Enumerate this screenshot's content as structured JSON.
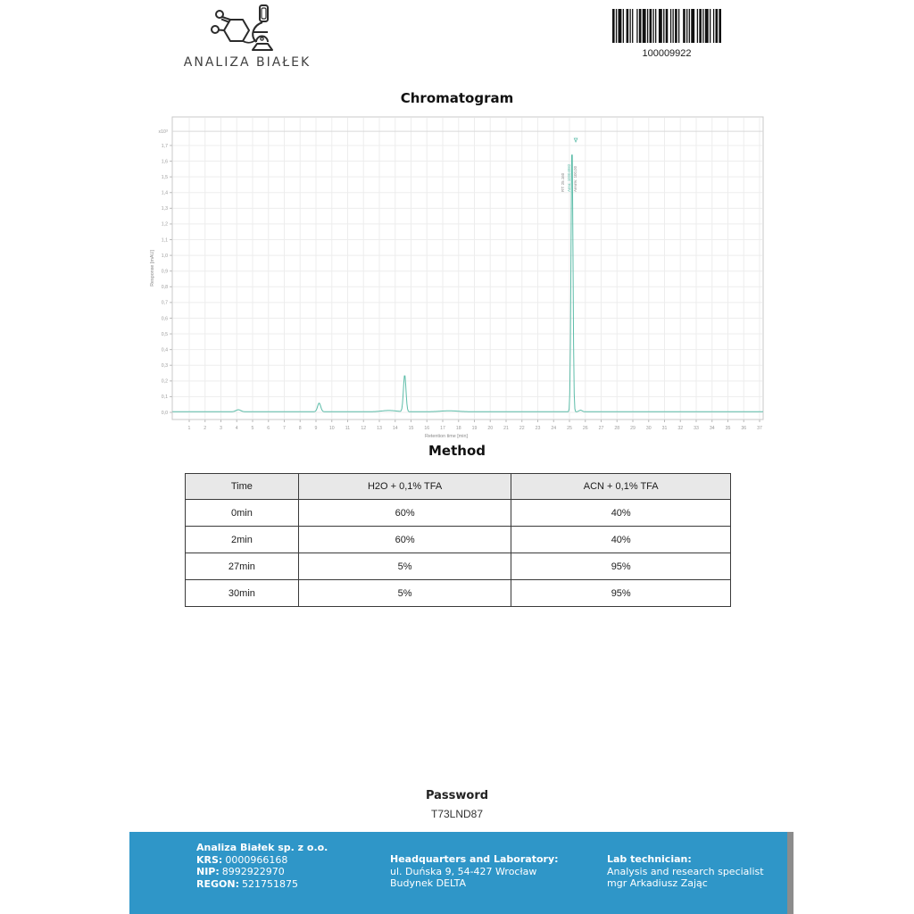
{
  "logo": {
    "name": "ANALIZA BIAŁEK"
  },
  "barcode": {
    "value": "100009922"
  },
  "sections": {
    "chromatogram_title": "Chromatogram",
    "method_title": "Method",
    "password_label": "Password",
    "password_value": "T73LND87"
  },
  "chart_data": {
    "type": "line",
    "title": "Chromatogram",
    "xlabel": "Retention time [min]",
    "ylabel": "Response [mAU]",
    "scale_label": "x10",
    "scale_exp": "3",
    "xlim": [
      0,
      37.3
    ],
    "ylim": [
      0,
      1.88
    ],
    "top_line_value": 1.79,
    "grid": true,
    "x_ticks": [
      1,
      2,
      3,
      4,
      5,
      6,
      7,
      8,
      9,
      10,
      11,
      12,
      13,
      14,
      15,
      16,
      17,
      18,
      19,
      20,
      21,
      22,
      23,
      24,
      25,
      26,
      27,
      28,
      29,
      30,
      31,
      32,
      33,
      34,
      35,
      36,
      37
    ],
    "y_tick_values": [
      0.0,
      0.1,
      0.2,
      0.3,
      0.4,
      0.5,
      0.6,
      0.7,
      0.8,
      0.9,
      1.0,
      1.1,
      1.2,
      1.3,
      1.4,
      1.5,
      1.6,
      1.7
    ],
    "y_tick_labels": [
      "0,0",
      "0,1",
      "0,2",
      "0,3",
      "0,4",
      "0,5",
      "0,6",
      "0,7",
      "0,8",
      "0,9",
      "1,0",
      "1,1",
      "1,2",
      "1,3",
      "1,4",
      "1,5",
      "1,6",
      "1,7"
    ],
    "baseline": 0.004,
    "line_color": "#5dbda9",
    "peaks": [
      {
        "rt": 4.1,
        "height": 0.013,
        "sigma": 0.15
      },
      {
        "rt": 9.2,
        "height": 0.055,
        "sigma": 0.1
      },
      {
        "rt": 13.6,
        "height": 0.008,
        "sigma": 0.45
      },
      {
        "rt": 14.6,
        "height": 0.235,
        "sigma": 0.08
      },
      {
        "rt": 17.4,
        "height": 0.006,
        "sigma": 0.55
      },
      {
        "rt": 25.16,
        "height": 1.728,
        "sigma": 0.06,
        "labels": [
          "RT: 25.160",
          "Area: 10004982",
          "Area%: 100,00"
        ]
      },
      {
        "rt": 25.7,
        "height": 0.01,
        "sigma": 0.1
      }
    ]
  },
  "method_table": {
    "headers": [
      "Time",
      "H2O + 0,1% TFA",
      "ACN + 0,1% TFA"
    ],
    "rows": [
      [
        "0min",
        "60%",
        "40%"
      ],
      [
        "2min",
        "60%",
        "40%"
      ],
      [
        "27min",
        "5%",
        "95%"
      ],
      [
        "30min",
        "5%",
        "95%"
      ]
    ]
  },
  "footer": {
    "company": {
      "name": "Analiza Białek sp. z o.o.",
      "krs_label": "KRS:",
      "krs": "0000966168",
      "nip_label": "NIP:",
      "nip": "8992922970",
      "regon_label": "REGON:",
      "regon": "521751875"
    },
    "hq": {
      "title": "Headquarters and Laboratory:",
      "line1": "ul. Duńska 9, 54-427 Wrocław",
      "line2": "Budynek DELTA"
    },
    "tech": {
      "title": "Lab technician:",
      "line1": "Analysis and research specialist",
      "line2": "mgr Arkadiusz Zając"
    }
  },
  "colors": {
    "accent_blue": "#2f96c8",
    "line_teal": "#5dbda9"
  }
}
